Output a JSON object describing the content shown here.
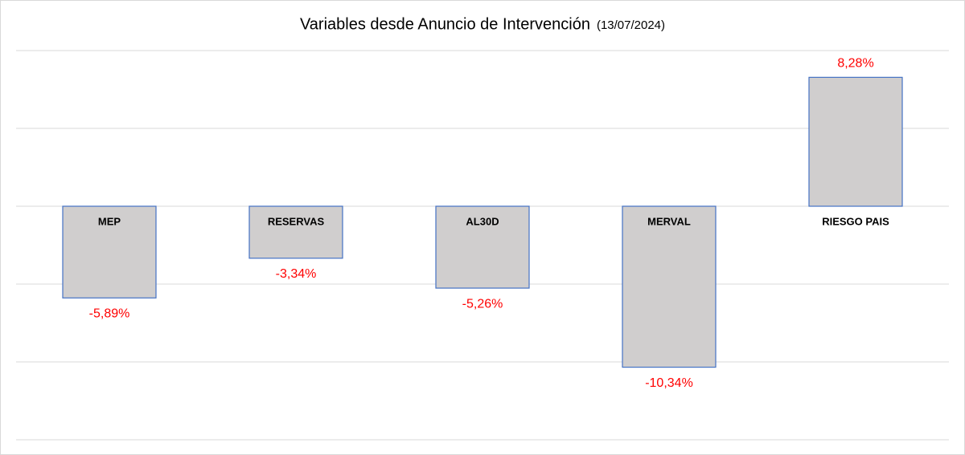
{
  "chart_data": {
    "type": "bar",
    "title": "Variables desde Anuncio de Intervención",
    "subtitle": "(13/07/2024)",
    "categories": [
      "MEP",
      "RESERVAS",
      "AL30D",
      "MERVAL",
      "RIESGO PAIS"
    ],
    "values": [
      -5.89,
      -3.34,
      -5.26,
      -10.34,
      8.28
    ],
    "value_labels": [
      "-5,89%",
      "-3,34%",
      "-5,26%",
      "-10,34%",
      "8,28%"
    ],
    "color": "#d0cece",
    "edge_color": "#4472c4",
    "label_color": "#ff0000",
    "ylim": [
      -15,
      10
    ],
    "yticks": [
      -15,
      -10,
      -5,
      0,
      5,
      10
    ],
    "grid": true
  }
}
